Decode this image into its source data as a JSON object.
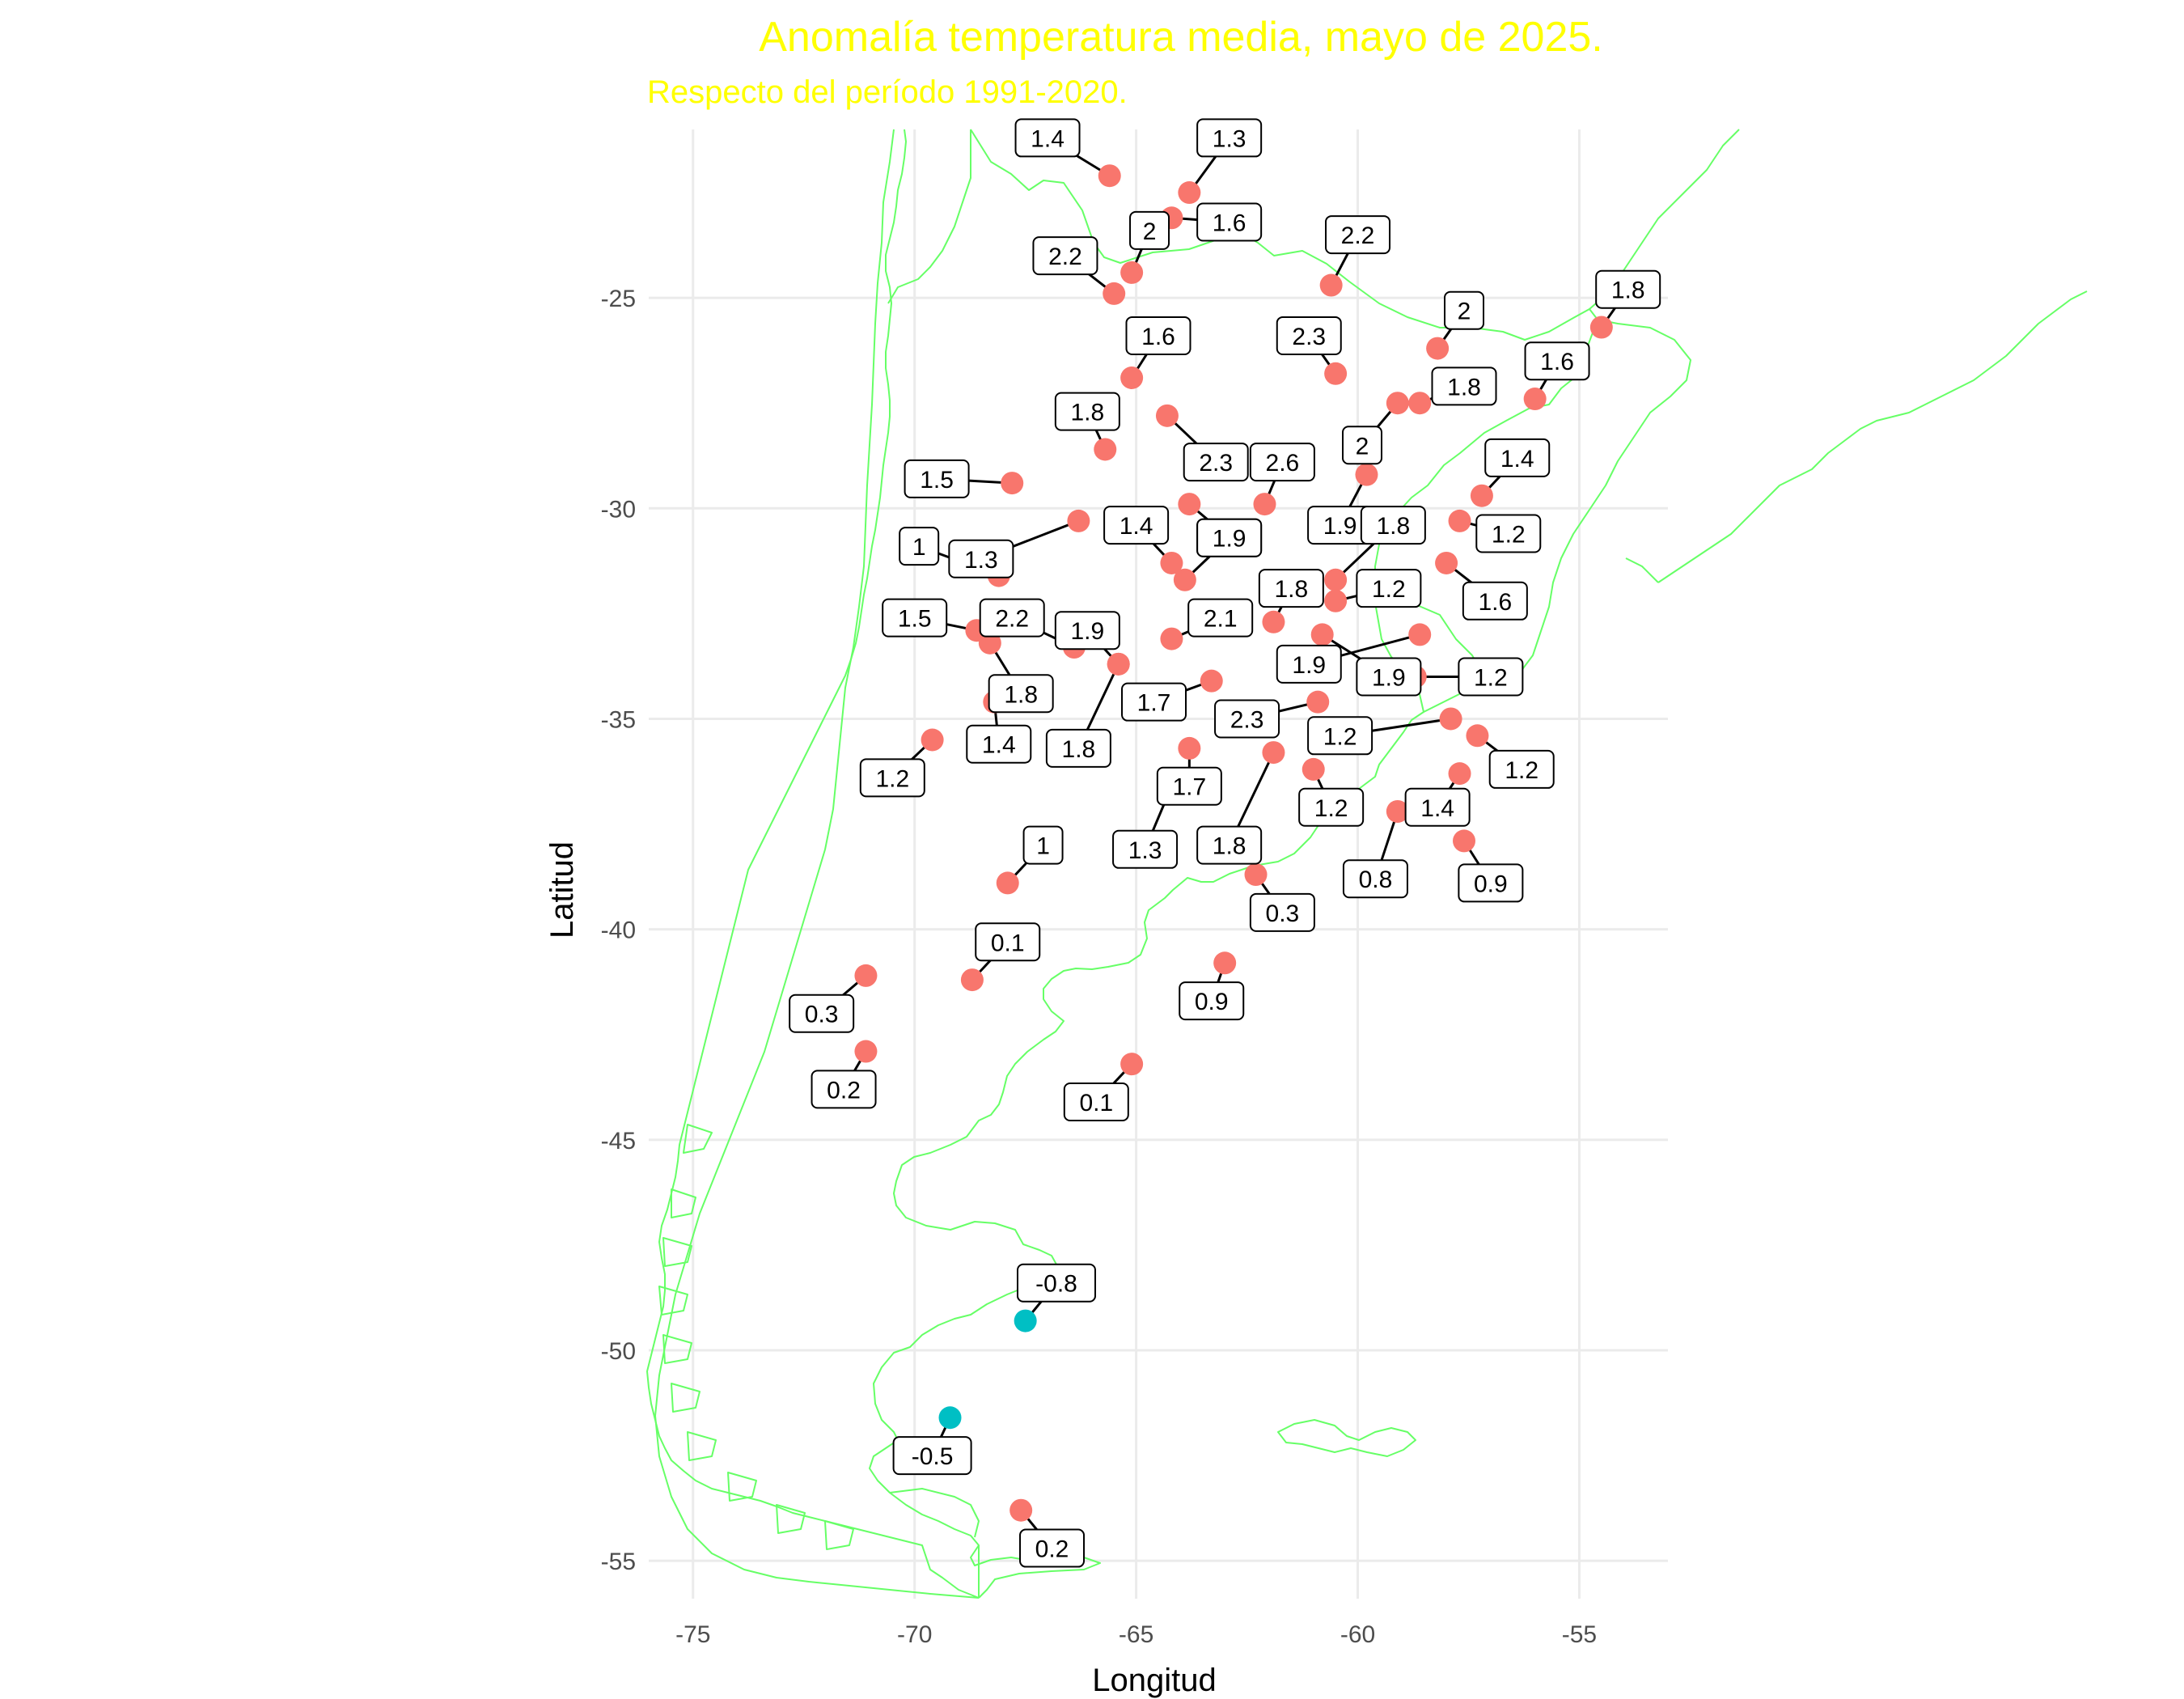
{
  "chart_data": {
    "type": "scatter",
    "title": "Anomalía temperatura media, mayo de 2025.",
    "subtitle": "Respecto del período 1991-2020.",
    "xlabel": "Longitud",
    "ylabel": "Latitud",
    "xlim": [
      -76,
      -53
    ],
    "ylim": [
      -55.9,
      -21
    ],
    "x_ticks": [
      "-75",
      "-70",
      "-65",
      "-60",
      "-55"
    ],
    "y_ticks": [
      "-25",
      "-30",
      "-35",
      "-40",
      "-45",
      "-50",
      "-55"
    ],
    "grid": true,
    "legend": "none",
    "colors": {
      "title": "#ffff00",
      "positive_anomaly": "#f8766d",
      "negative_anomaly": "#00bfc4",
      "coastline": "#66ff66",
      "grid": "#ebebeb",
      "tick_text": "#4d4d4d"
    },
    "points": [
      {
        "x": -65.6,
        "y": -22.1,
        "label": "1.4",
        "lx": -67.0,
        "ly": -21.2
      },
      {
        "x": -63.8,
        "y": -22.5,
        "label": "1.3",
        "lx": -62.9,
        "ly": -21.2
      },
      {
        "x": -64.2,
        "y": -23.1,
        "label": "1.6",
        "lx": -62.9,
        "ly": -23.2
      },
      {
        "x": -65.1,
        "y": -24.4,
        "label": "2",
        "lx": -64.7,
        "ly": -23.4
      },
      {
        "x": -65.5,
        "y": -24.9,
        "label": "2.2",
        "lx": -66.6,
        "ly": -24.0
      },
      {
        "x": -60.6,
        "y": -24.7,
        "label": "2.2",
        "lx": -60.0,
        "ly": -23.5
      },
      {
        "x": -58.2,
        "y": -26.2,
        "label": "2",
        "lx": -57.6,
        "ly": -25.3
      },
      {
        "x": -54.5,
        "y": -25.7,
        "label": "1.8",
        "lx": -53.9,
        "ly": -24.8
      },
      {
        "x": -60.5,
        "y": -26.8,
        "label": "2.3",
        "lx": -61.1,
        "ly": -25.9
      },
      {
        "x": -65.1,
        "y": -26.9,
        "label": "1.6",
        "lx": -64.5,
        "ly": -25.9
      },
      {
        "x": -56.0,
        "y": -27.4,
        "label": "1.6",
        "lx": -55.5,
        "ly": -26.5
      },
      {
        "x": -58.6,
        "y": -27.5,
        "label": "1.8",
        "lx": -57.6,
        "ly": -27.1
      },
      {
        "x": -59.1,
        "y": -27.5,
        "label": "2",
        "lx": -59.9,
        "ly": -28.5
      },
      {
        "x": -64.3,
        "y": -27.8,
        "label": "2.3",
        "lx": -63.2,
        "ly": -28.9
      },
      {
        "x": -65.7,
        "y": -28.6,
        "label": "1.8",
        "lx": -66.1,
        "ly": -27.7
      },
      {
        "x": -67.8,
        "y": -29.4,
        "label": "1.5",
        "lx": -69.5,
        "ly": -29.3
      },
      {
        "x": -59.8,
        "y": -29.2,
        "label": "1.9",
        "lx": -60.4,
        "ly": -30.4
      },
      {
        "x": -62.1,
        "y": -29.9,
        "label": "2.6",
        "lx": -61.7,
        "ly": -28.9
      },
      {
        "x": -63.8,
        "y": -29.9,
        "label": "1.9",
        "lx": -62.9,
        "ly": -30.7
      },
      {
        "x": -57.2,
        "y": -29.7,
        "label": "1.4",
        "lx": -56.4,
        "ly": -28.8
      },
      {
        "x": -57.7,
        "y": -30.3,
        "label": "1.2",
        "lx": -56.6,
        "ly": -30.6
      },
      {
        "x": -66.3,
        "y": -30.3,
        "label": "1.3",
        "lx": -68.5,
        "ly": -31.2
      },
      {
        "x": -60.5,
        "y": -31.7,
        "label": "1.8",
        "lx": -59.2,
        "ly": -30.4
      },
      {
        "x": -64.2,
        "y": -31.3,
        "label": "1.4",
        "lx": -65.0,
        "ly": -30.4
      },
      {
        "x": -63.9,
        "y": -31.7,
        "label": "1.9",
        "lx": -62.9,
        "ly": -30.7
      },
      {
        "x": -68.1,
        "y": -31.6,
        "label": "1",
        "lx": -69.9,
        "ly": -30.9
      },
      {
        "x": -60.5,
        "y": -32.2,
        "label": "1.2",
        "lx": -59.3,
        "ly": -31.9
      },
      {
        "x": -61.9,
        "y": -32.7,
        "label": "1.8",
        "lx": -61.5,
        "ly": -31.9
      },
      {
        "x": -58.0,
        "y": -31.3,
        "label": "1.6",
        "lx": -56.9,
        "ly": -32.2
      },
      {
        "x": -68.6,
        "y": -32.9,
        "label": "1.5",
        "lx": -70.0,
        "ly": -32.6
      },
      {
        "x": -68.3,
        "y": -33.2,
        "label": "1.8",
        "lx": -67.6,
        "ly": -34.4
      },
      {
        "x": -66.4,
        "y": -33.3,
        "label": "2.2",
        "lx": -67.8,
        "ly": -32.6
      },
      {
        "x": -65.4,
        "y": -33.7,
        "label": "1.9",
        "lx": -66.1,
        "ly": -32.9
      },
      {
        "x": -64.2,
        "y": -33.1,
        "label": "2.1",
        "lx": -63.1,
        "ly": -32.6
      },
      {
        "x": -60.8,
        "y": -33.0,
        "label": "1.9",
        "lx": -59.3,
        "ly": -34.0
      },
      {
        "x": -58.6,
        "y": -33.0,
        "label": "1.9",
        "lx": -61.1,
        "ly": -33.7
      },
      {
        "x": -58.7,
        "y": -34.0,
        "label": "1.2",
        "lx": -57.0,
        "ly": -34.0
      },
      {
        "x": -63.3,
        "y": -34.1,
        "label": "1.7",
        "lx": -64.6,
        "ly": -34.6
      },
      {
        "x": -60.9,
        "y": -34.6,
        "label": "2.3",
        "lx": -62.5,
        "ly": -35.0
      },
      {
        "x": -68.2,
        "y": -34.6,
        "label": "1.4",
        "lx": -68.1,
        "ly": -35.6
      },
      {
        "x": -65.4,
        "y": -33.7,
        "label": "1.8",
        "lx": -66.3,
        "ly": -35.7
      },
      {
        "x": -57.9,
        "y": -35.0,
        "label": "1.2",
        "lx": -60.4,
        "ly": -35.4
      },
      {
        "x": -57.3,
        "y": -35.4,
        "label": "1.2",
        "lx": -56.3,
        "ly": -36.2
      },
      {
        "x": -69.6,
        "y": -35.5,
        "label": "1.2",
        "lx": -70.5,
        "ly": -36.4
      },
      {
        "x": -63.8,
        "y": -35.7,
        "label": "1.7",
        "lx": -63.8,
        "ly": -36.6
      },
      {
        "x": -61.9,
        "y": -35.8,
        "label": "1.8",
        "lx": -62.9,
        "ly": -38.0
      },
      {
        "x": -61.0,
        "y": -36.2,
        "label": "1.2",
        "lx": -60.6,
        "ly": -37.1
      },
      {
        "x": -57.7,
        "y": -36.3,
        "label": "1.4",
        "lx": -58.2,
        "ly": -37.1
      },
      {
        "x": -64.2,
        "y": -36.6,
        "label": "1.3",
        "lx": -64.8,
        "ly": -38.1
      },
      {
        "x": -59.1,
        "y": -37.2,
        "label": "0.8",
        "lx": -59.6,
        "ly": -38.8
      },
      {
        "x": -57.6,
        "y": -37.9,
        "label": "0.9",
        "lx": -57.0,
        "ly": -38.9
      },
      {
        "x": -67.9,
        "y": -38.9,
        "label": "1",
        "lx": -67.1,
        "ly": -38.0
      },
      {
        "x": -62.3,
        "y": -38.7,
        "label": "0.3",
        "lx": -61.7,
        "ly": -39.6
      },
      {
        "x": -63.0,
        "y": -40.8,
        "label": "0.9",
        "lx": -63.3,
        "ly": -41.7
      },
      {
        "x": -68.7,
        "y": -41.2,
        "label": "0.1",
        "lx": -67.9,
        "ly": -40.3
      },
      {
        "x": -71.1,
        "y": -41.1,
        "label": "0.3",
        "lx": -72.1,
        "ly": -42.0
      },
      {
        "x": -71.1,
        "y": -42.9,
        "label": "0.2",
        "lx": -71.6,
        "ly": -43.8
      },
      {
        "x": -65.1,
        "y": -43.2,
        "label": "0.1",
        "lx": -65.9,
        "ly": -44.1
      },
      {
        "x": -67.5,
        "y": -49.3,
        "label": "-0.8",
        "lx": -66.8,
        "ly": -48.4
      },
      {
        "x": -69.2,
        "y": -51.6,
        "label": "-0.5",
        "lx": -69.6,
        "ly": -52.5
      },
      {
        "x": -67.6,
        "y": -53.8,
        "label": "0.2",
        "lx": -66.9,
        "ly": -54.7
      }
    ]
  }
}
